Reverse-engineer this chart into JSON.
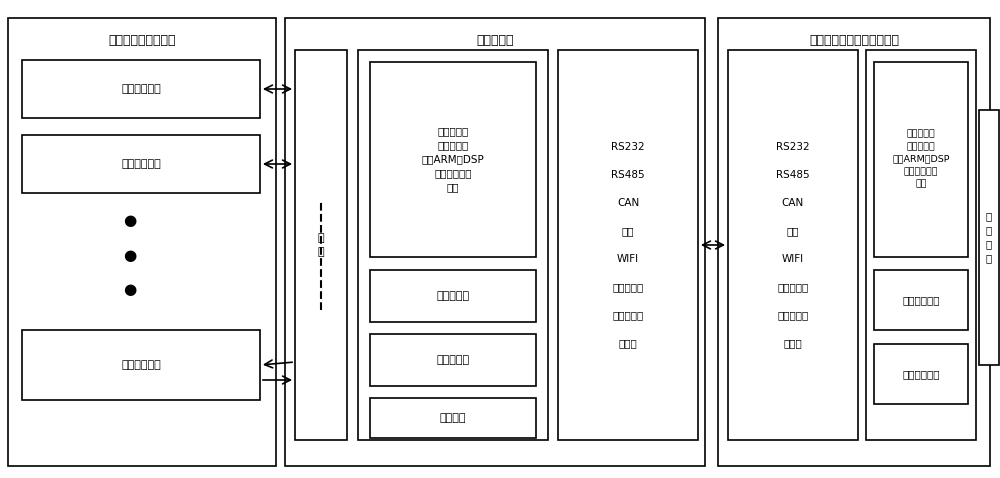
{
  "bg_color": "#ffffff",
  "border_color": "#000000",
  "text_color": "#000000",
  "font_size": 8,
  "title_font_size": 9,
  "fig_width": 10.0,
  "fig_height": 4.78,
  "section1_title": "射频电子标签附着物",
  "section2_title": "射频阅读器",
  "section3_title": "数据处理终端（或计算机）",
  "tag_label": "射频电子标签",
  "controller_text": "程序控制器\n（可用单片\n机、ARM、DSP\n等微控制器实\n现）",
  "rf_receiver": "射频接收器",
  "rf_transmitter": "射频发射器",
  "power_module": "电源模块",
  "antenna_text": "天\n线",
  "comm_text": "RS232\n\nRS485\n\nCAN\n\n蓝牙\n\nWIFI\n\n等有线或者\n\n无线通讯接\n\n口模块",
  "data_storage": "数据存储模块",
  "keyboard_input": "键盘输入模块",
  "display_text": "显\n示\n模\n块"
}
